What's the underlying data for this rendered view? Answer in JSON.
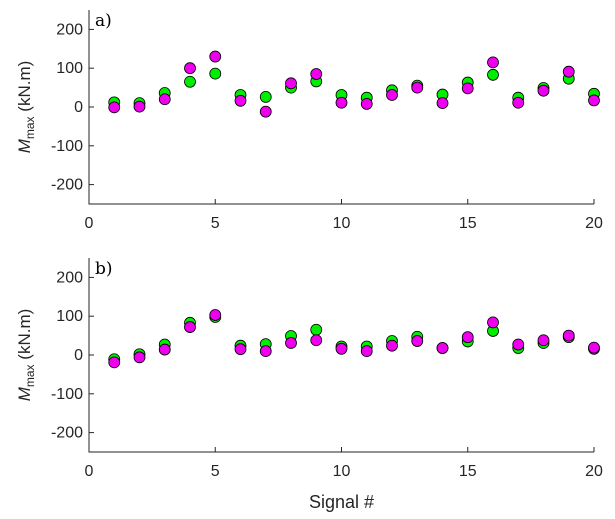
{
  "chart_data": [
    {
      "type": "scatter",
      "panel_label": "a)",
      "ylabel": {
        "main": "M",
        "sub": "max",
        "unit": " (kN.m)"
      },
      "xlabel": "",
      "xlim": [
        0,
        20
      ],
      "ylim": [
        -250,
        250
      ],
      "xticks": [
        0,
        5,
        10,
        15,
        20
      ],
      "yticks": [
        200,
        100,
        0,
        -100,
        -200
      ],
      "grid": false,
      "colors": {
        "green": "#00ee00",
        "magenta": "#ee00ee"
      },
      "series": [
        {
          "color": "green",
          "x": [
            1,
            2,
            3,
            4,
            5,
            6,
            7,
            8,
            9,
            10,
            11,
            12,
            13,
            14,
            15,
            16,
            17,
            18,
            19,
            20
          ],
          "values": [
            12,
            10,
            36,
            65,
            86,
            31,
            26,
            50,
            66,
            31,
            24,
            43,
            55,
            32,
            63,
            83,
            24,
            49,
            73,
            34
          ]
        },
        {
          "color": "magenta",
          "x": [
            1,
            2,
            3,
            4,
            5,
            6,
            7,
            8,
            9,
            10,
            11,
            12,
            13,
            14,
            15,
            16,
            17,
            18,
            19,
            20
          ],
          "values": [
            -1,
            1,
            20,
            100,
            130,
            16,
            -12,
            61,
            85,
            11,
            8,
            31,
            50,
            10,
            48,
            115,
            11,
            42,
            91,
            17
          ]
        }
      ]
    },
    {
      "type": "scatter",
      "panel_label": "b)",
      "ylabel": {
        "main": "M",
        "sub": "max",
        "unit": " (kN.m)"
      },
      "xlabel": "Signal #",
      "xlim": [
        0,
        20
      ],
      "ylim": [
        -250,
        250
      ],
      "xticks": [
        0,
        5,
        10,
        15,
        20
      ],
      "yticks": [
        200,
        100,
        0,
        -100,
        -200
      ],
      "grid": false,
      "colors": {
        "green": "#00ee00",
        "magenta": "#ee00ee"
      },
      "series": [
        {
          "color": "green",
          "x": [
            1,
            2,
            3,
            4,
            5,
            6,
            7,
            8,
            9,
            10,
            11,
            12,
            13,
            14,
            15,
            16,
            17,
            18,
            19,
            20
          ],
          "values": [
            -11,
            2,
            27,
            83,
            98,
            24,
            28,
            49,
            65,
            22,
            22,
            36,
            47,
            18,
            35,
            62,
            18,
            31,
            46,
            16
          ]
        },
        {
          "color": "magenta",
          "x": [
            1,
            2,
            3,
            4,
            5,
            6,
            7,
            8,
            9,
            10,
            11,
            12,
            13,
            14,
            15,
            16,
            17,
            18,
            19,
            20
          ],
          "values": [
            -19,
            -6,
            14,
            72,
            103,
            15,
            10,
            31,
            38,
            16,
            10,
            24,
            36,
            18,
            46,
            84,
            27,
            38,
            50,
            19
          ]
        }
      ]
    }
  ]
}
